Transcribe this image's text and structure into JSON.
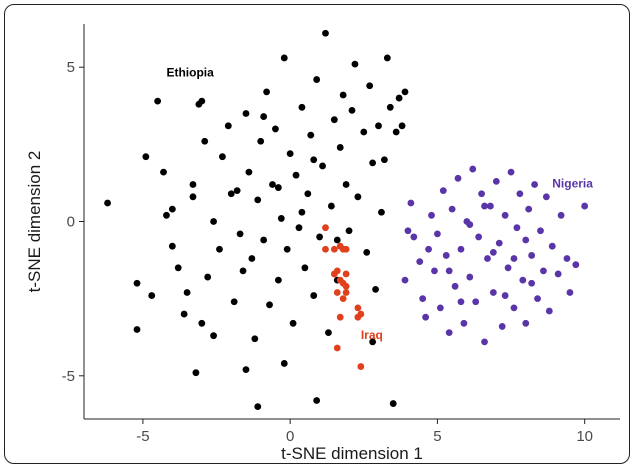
{
  "chart_data": {
    "type": "scatter",
    "xlabel": "t-SNE dimension 1",
    "ylabel": "t-SNE dimension 2",
    "xlim": [
      -7.0,
      11.2
    ],
    "ylim": [
      -6.4,
      6.4
    ],
    "x_ticks": [
      -5,
      0,
      5,
      10
    ],
    "y_ticks": [
      -5,
      0,
      5
    ],
    "x_tick_labels": [
      "-5",
      "0",
      "5",
      "10"
    ],
    "y_tick_labels": [
      "-5",
      "0",
      "5"
    ],
    "grid": false,
    "series": [
      {
        "name": "Ethiopia",
        "color": "#000000",
        "label_position": [
          -4.2,
          4.7
        ],
        "points": [
          [
            -6.2,
            0.6
          ],
          [
            -5.2,
            -2.0
          ],
          [
            -5.2,
            -3.5
          ],
          [
            -4.9,
            2.1
          ],
          [
            -4.7,
            -2.4
          ],
          [
            -4.5,
            3.9
          ],
          [
            -4.3,
            1.6
          ],
          [
            -4.2,
            0.2
          ],
          [
            -4.0,
            0.4
          ],
          [
            -3.8,
            -1.5
          ],
          [
            -3.6,
            -3.0
          ],
          [
            -3.5,
            -2.3
          ],
          [
            -3.3,
            1.2
          ],
          [
            -3.1,
            3.8
          ],
          [
            -3.0,
            3.9
          ],
          [
            -3.2,
            -4.9
          ],
          [
            -3.0,
            -3.3
          ],
          [
            -2.8,
            -1.8
          ],
          [
            -2.6,
            0.0
          ],
          [
            -2.4,
            -0.9
          ],
          [
            -2.3,
            2.1
          ],
          [
            -2.1,
            3.1
          ],
          [
            -2.0,
            0.9
          ],
          [
            -1.9,
            -2.6
          ],
          [
            -1.7,
            -0.4
          ],
          [
            -1.5,
            3.5
          ],
          [
            -1.4,
            1.6
          ],
          [
            -1.3,
            -1.2
          ],
          [
            -1.2,
            -3.8
          ],
          [
            -1.1,
            0.7
          ],
          [
            -1.0,
            2.6
          ],
          [
            -0.9,
            -0.6
          ],
          [
            -0.8,
            4.2
          ],
          [
            -0.7,
            -2.7
          ],
          [
            -0.6,
            1.2
          ],
          [
            -0.5,
            3.0
          ],
          [
            -0.4,
            -1.9
          ],
          [
            -0.3,
            0.1
          ],
          [
            -0.2,
            5.3
          ],
          [
            -0.1,
            -0.9
          ],
          [
            0.0,
            2.2
          ],
          [
            0.1,
            -3.3
          ],
          [
            0.2,
            1.5
          ],
          [
            0.3,
            -0.2
          ],
          [
            0.4,
            3.7
          ],
          [
            0.5,
            -1.5
          ],
          [
            0.6,
            0.9
          ],
          [
            0.7,
            2.8
          ],
          [
            0.8,
            -2.4
          ],
          [
            0.9,
            4.6
          ],
          [
            1.0,
            -0.5
          ],
          [
            1.1,
            1.8
          ],
          [
            1.2,
            6.1
          ],
          [
            1.3,
            -3.6
          ],
          [
            1.4,
            0.5
          ],
          [
            1.5,
            3.3
          ],
          [
            1.6,
            -1.9
          ],
          [
            1.7,
            2.4
          ],
          [
            1.8,
            4.1
          ],
          [
            1.9,
            1.2
          ],
          [
            2.0,
            -0.3
          ],
          [
            2.1,
            3.6
          ],
          [
            2.2,
            5.1
          ],
          [
            2.3,
            0.8
          ],
          [
            2.5,
            2.9
          ],
          [
            2.6,
            -1.0
          ],
          [
            2.7,
            4.4
          ],
          [
            2.8,
            1.9
          ],
          [
            2.9,
            -2.2
          ],
          [
            3.0,
            3.1
          ],
          [
            3.1,
            0.3
          ],
          [
            3.2,
            2.0
          ],
          [
            3.3,
            5.3
          ],
          [
            3.4,
            3.7
          ],
          [
            3.5,
            -5.9
          ],
          [
            3.6,
            2.9
          ],
          [
            3.7,
            4.0
          ],
          [
            3.8,
            3.1
          ],
          [
            3.9,
            4.2
          ],
          [
            -1.1,
            -6.0
          ],
          [
            -1.5,
            -4.8
          ],
          [
            -0.2,
            -4.6
          ],
          [
            0.9,
            -5.8
          ],
          [
            2.8,
            -3.9
          ],
          [
            -2.6,
            -3.7
          ],
          [
            -3.3,
            0.8
          ],
          [
            -4.0,
            -0.8
          ],
          [
            -2.9,
            2.6
          ],
          [
            -1.8,
            1.0
          ],
          [
            -0.9,
            3.4
          ],
          [
            0.4,
            0.3
          ],
          [
            1.6,
            -0.6
          ],
          [
            -0.4,
            1.1
          ],
          [
            -1.6,
            -1.6
          ],
          [
            0.8,
            2.0
          ]
        ]
      },
      {
        "name": "Iraq",
        "color": "#e0401c",
        "label_position": [
          2.4,
          -3.8
        ],
        "points": [
          [
            1.2,
            -0.2
          ],
          [
            1.2,
            -0.9
          ],
          [
            1.5,
            -0.9
          ],
          [
            1.7,
            -0.8
          ],
          [
            1.8,
            -0.9
          ],
          [
            1.9,
            -0.9
          ],
          [
            1.6,
            -1.6
          ],
          [
            1.7,
            -1.9
          ],
          [
            1.8,
            -2.0
          ],
          [
            1.9,
            -2.1
          ],
          [
            1.6,
            -2.3
          ],
          [
            1.5,
            -1.7
          ],
          [
            1.9,
            -1.7
          ],
          [
            1.8,
            -2.5
          ],
          [
            1.7,
            -3.1
          ],
          [
            2.3,
            -2.8
          ],
          [
            2.4,
            -3.0
          ],
          [
            2.3,
            -3.1
          ],
          [
            1.6,
            -4.1
          ],
          [
            2.4,
            -4.7
          ],
          [
            1.9,
            -2.3
          ]
        ]
      },
      {
        "name": "Nigeria",
        "color": "#5a35a8",
        "label_position": [
          8.9,
          1.1
        ],
        "points": [
          [
            3.9,
            -1.9
          ],
          [
            4.0,
            -0.3
          ],
          [
            4.1,
            0.6
          ],
          [
            4.2,
            -0.5
          ],
          [
            4.4,
            -1.3
          ],
          [
            4.5,
            -2.5
          ],
          [
            4.6,
            -3.1
          ],
          [
            4.8,
            0.2
          ],
          [
            4.9,
            -1.6
          ],
          [
            5.0,
            -0.4
          ],
          [
            5.1,
            -2.8
          ],
          [
            5.2,
            1.0
          ],
          [
            5.3,
            -1.1
          ],
          [
            5.4,
            -3.6
          ],
          [
            5.5,
            0.4
          ],
          [
            5.6,
            -2.1
          ],
          [
            5.7,
            1.4
          ],
          [
            5.8,
            -0.9
          ],
          [
            5.9,
            -3.3
          ],
          [
            6.0,
            0.0
          ],
          [
            6.1,
            -1.8
          ],
          [
            6.2,
            1.7
          ],
          [
            6.3,
            -2.6
          ],
          [
            6.4,
            -0.5
          ],
          [
            6.5,
            0.9
          ],
          [
            6.6,
            -3.9
          ],
          [
            6.7,
            -1.2
          ],
          [
            6.8,
            0.5
          ],
          [
            6.9,
            -2.3
          ],
          [
            7.0,
            1.3
          ],
          [
            7.1,
            -0.7
          ],
          [
            7.2,
            -3.4
          ],
          [
            7.3,
            0.2
          ],
          [
            7.4,
            -1.5
          ],
          [
            7.5,
            1.6
          ],
          [
            7.6,
            -2.8
          ],
          [
            7.7,
            -0.2
          ],
          [
            7.8,
            0.9
          ],
          [
            7.9,
            -1.9
          ],
          [
            8.0,
            -3.3
          ],
          [
            8.1,
            0.4
          ],
          [
            8.2,
            -1.1
          ],
          [
            8.3,
            1.2
          ],
          [
            8.4,
            -2.5
          ],
          [
            8.5,
            -0.3
          ],
          [
            8.6,
            -1.6
          ],
          [
            8.7,
            0.8
          ],
          [
            8.8,
            -2.9
          ],
          [
            8.9,
            -0.8
          ],
          [
            9.1,
            -1.7
          ],
          [
            9.2,
            0.2
          ],
          [
            9.4,
            -1.2
          ],
          [
            9.5,
            -2.3
          ],
          [
            9.7,
            -1.4
          ],
          [
            10.0,
            0.5
          ],
          [
            5.4,
            -1.6
          ],
          [
            6.1,
            -0.1
          ],
          [
            6.9,
            -1.0
          ],
          [
            7.6,
            -1.2
          ],
          [
            8.2,
            -2.0
          ],
          [
            5.8,
            -2.6
          ],
          [
            6.6,
            0.5
          ],
          [
            7.3,
            -2.4
          ],
          [
            8.0,
            -0.6
          ],
          [
            4.7,
            -0.9
          ]
        ]
      }
    ]
  }
}
